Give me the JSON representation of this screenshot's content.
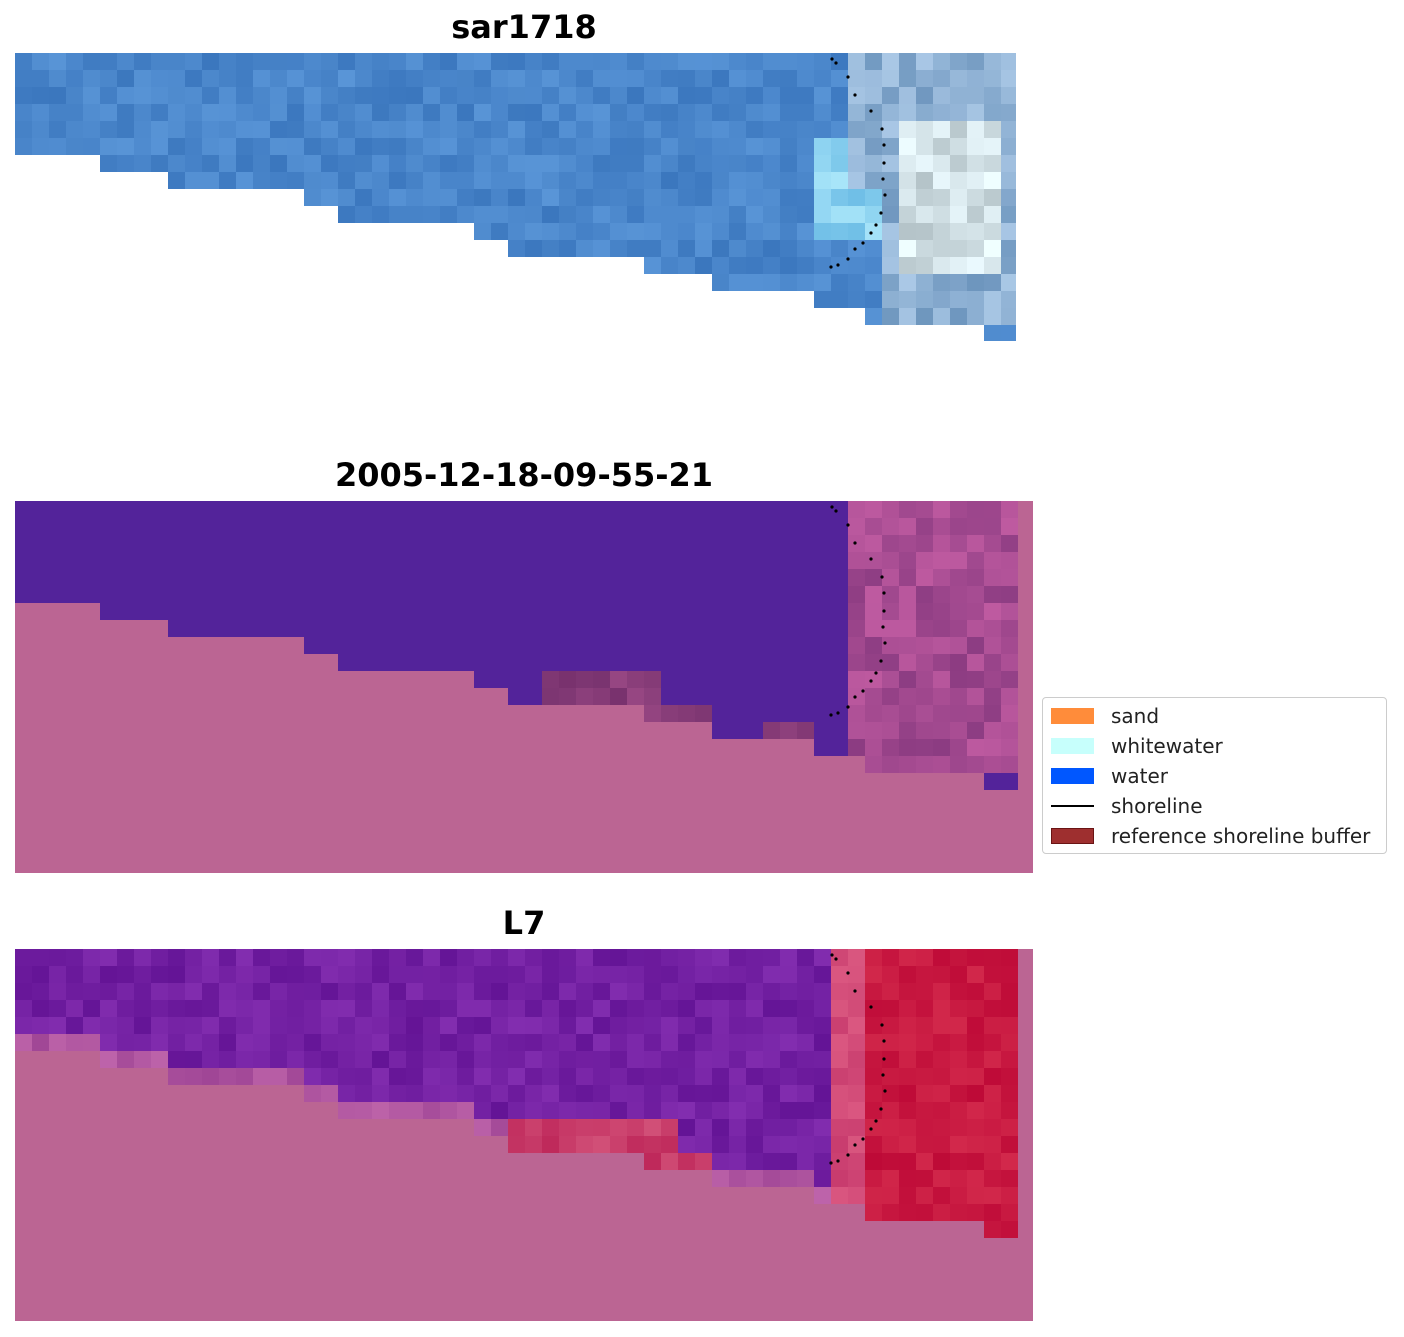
{
  "panels": [
    {
      "title": "sar1718"
    },
    {
      "title": "2005-12-18-09-55-21"
    },
    {
      "title": "L7"
    }
  ],
  "legend": {
    "items": [
      {
        "label": "sand",
        "color": "#ff8c3a",
        "kind": "patch"
      },
      {
        "label": "whitewater",
        "color": "#c7fffc",
        "kind": "patch"
      },
      {
        "label": "water",
        "color": "#0057ff",
        "kind": "patch"
      },
      {
        "label": "shoreline",
        "color": "#000000",
        "kind": "line"
      },
      {
        "label": "reference shoreline buffer",
        "color": "#9e2f2f",
        "kind": "patch"
      }
    ]
  },
  "colors": {
    "rgb_water": "#4a86c8",
    "classified_water": "#53239a",
    "classified_land": "#bb6593",
    "mndwi_water": "#6f1c9c",
    "mndwi_land": "#bb6593",
    "mndwi_high": "#c4123c"
  }
}
